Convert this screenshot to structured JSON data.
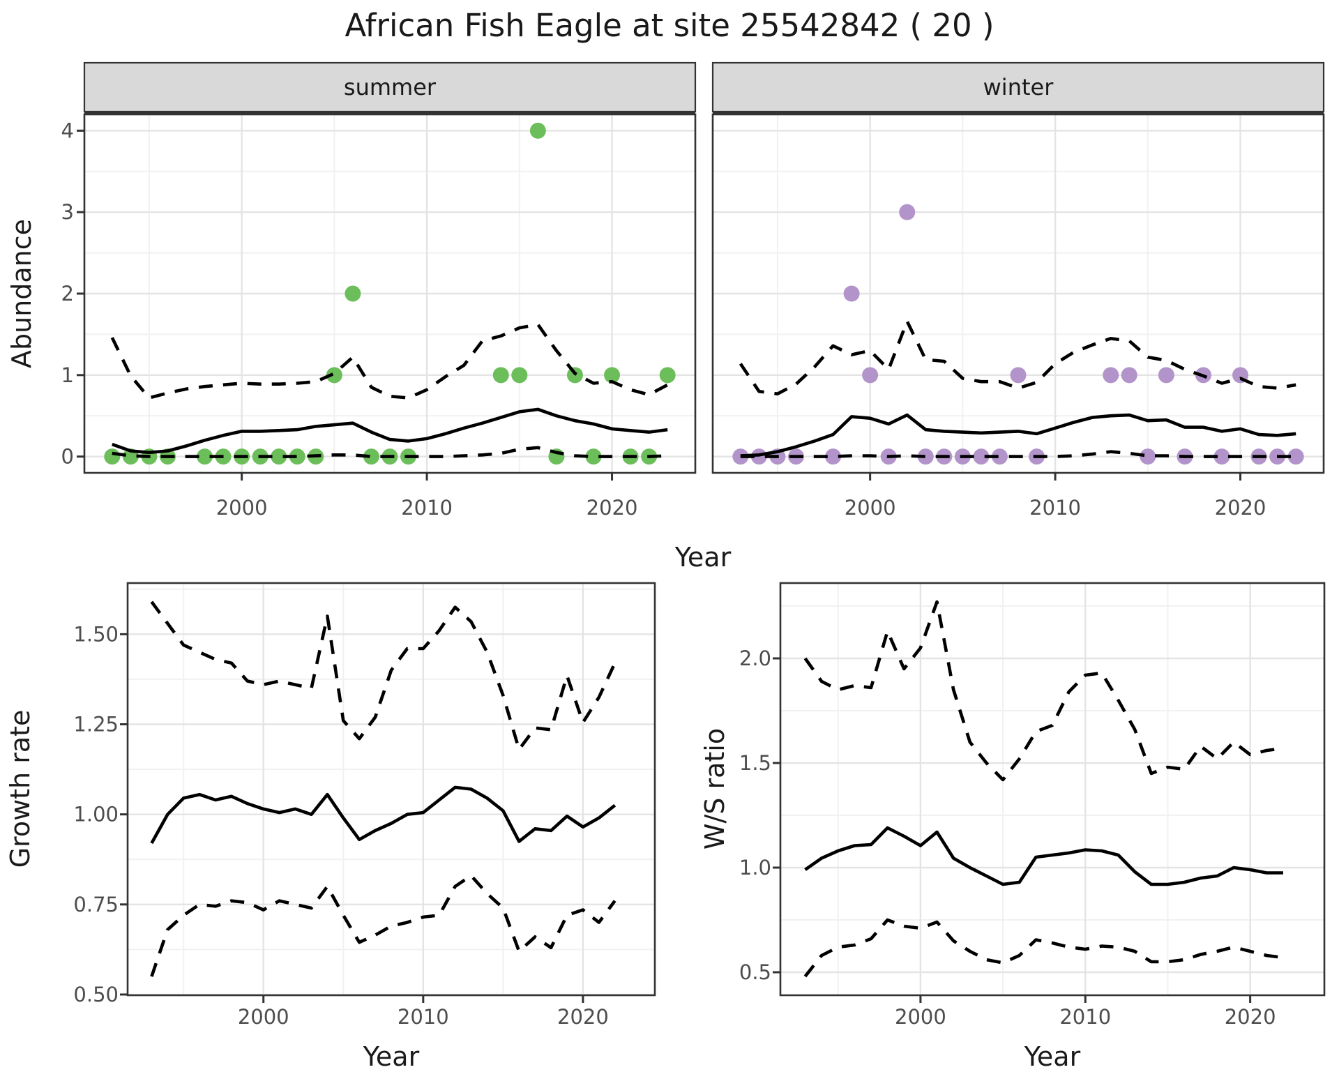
{
  "title": "African Fish Eagle at site 25542842 ( 20 )",
  "colors": {
    "summer_point": "#6CBE5A",
    "winter_point": "#B294CB",
    "line": "#000000",
    "grid_major": "#E4E4E4",
    "grid_minor": "#F1F1F1",
    "panel_border": "#333333",
    "tick": "#333333",
    "tick_label": "#4D4D4D",
    "axis_title": "#1A1A1A",
    "strip_bg": "#D9D9D9",
    "strip_text": "#1A1A1A"
  },
  "chart_data": [
    {
      "id": "abundance-summer",
      "type": "scatter",
      "facet_label": "summer",
      "xlabel": "Year",
      "ylabel": "Abundance",
      "xlim": [
        1991.5,
        2024.5
      ],
      "ylim": [
        -0.2,
        4.2
      ],
      "xticks": [
        2000,
        2010,
        2020
      ],
      "xtick_labels": [
        "2000",
        "2010",
        "2020"
      ],
      "xminor": [
        1995,
        2005,
        2015
      ],
      "yticks": [
        0,
        1,
        2,
        3,
        4
      ],
      "ytick_labels": [
        "0",
        "1",
        "2",
        "3",
        "4"
      ],
      "yminor": [
        0.5,
        1.5,
        2.5,
        3.5
      ],
      "years": [
        1993,
        1994,
        1995,
        1996,
        1997,
        1998,
        1999,
        2000,
        2001,
        2002,
        2003,
        2004,
        2005,
        2006,
        2007,
        2008,
        2009,
        2010,
        2011,
        2012,
        2013,
        2014,
        2015,
        2016,
        2017,
        2018,
        2019,
        2020,
        2021,
        2022,
        2023
      ],
      "series": [
        {
          "name": "mean",
          "style": "solid",
          "values": [
            0.15,
            0.07,
            0.05,
            0.07,
            0.13,
            0.2,
            0.26,
            0.31,
            0.31,
            0.32,
            0.33,
            0.37,
            0.39,
            0.41,
            0.3,
            0.21,
            0.19,
            0.22,
            0.28,
            0.35,
            0.41,
            0.48,
            0.55,
            0.58,
            0.5,
            0.44,
            0.4,
            0.34,
            0.32,
            0.3,
            0.33
          ]
        },
        {
          "name": "upper95",
          "style": "dashed",
          "values": [
            1.46,
            0.99,
            0.72,
            0.78,
            0.83,
            0.86,
            0.88,
            0.9,
            0.89,
            0.89,
            0.9,
            0.92,
            1.02,
            1.22,
            0.85,
            0.74,
            0.72,
            0.82,
            0.98,
            1.12,
            1.42,
            1.48,
            1.58,
            1.62,
            1.3,
            1.02,
            0.9,
            0.92,
            0.82,
            0.76,
            0.88
          ]
        },
        {
          "name": "lower95",
          "style": "dashed",
          "values": [
            0.04,
            0.01,
            0,
            0,
            0,
            0,
            0,
            0,
            0,
            0,
            0,
            0.01,
            0.02,
            0.02,
            0,
            0,
            0,
            0,
            0,
            0.01,
            0.02,
            0.04,
            0.09,
            0.11,
            0.05,
            0.01,
            0,
            0,
            0,
            0,
            0.01
          ]
        }
      ],
      "points": {
        "x": [
          1993,
          1994,
          1995,
          1996,
          1998,
          1999,
          2000,
          2001,
          2002,
          2003,
          2004,
          2005,
          2006,
          2007,
          2008,
          2009,
          2014,
          2015,
          2016,
          2017,
          2018,
          2019,
          2020,
          2021,
          2022,
          2023
        ],
        "y": [
          0,
          0,
          0,
          0,
          0,
          0,
          0,
          0,
          0,
          0,
          0,
          1,
          2,
          0,
          0,
          0,
          1,
          1,
          4,
          0,
          1,
          0,
          1,
          0,
          0,
          1
        ],
        "color_key": "summer_point"
      }
    },
    {
      "id": "abundance-winter",
      "type": "scatter",
      "facet_label": "winter",
      "xlabel": "Year",
      "ylabel": "",
      "xlim": [
        1991.5,
        2024.5
      ],
      "ylim": [
        -0.2,
        4.2
      ],
      "xticks": [
        2000,
        2010,
        2020
      ],
      "xtick_labels": [
        "2000",
        "2010",
        "2020"
      ],
      "xminor": [
        1995,
        2005,
        2015
      ],
      "yticks": [
        0,
        1,
        2,
        3,
        4
      ],
      "ytick_labels": [
        "0",
        "1",
        "2",
        "3",
        "4"
      ],
      "yminor": [
        0.5,
        1.5,
        2.5,
        3.5
      ],
      "years": [
        1993,
        1994,
        1995,
        1996,
        1997,
        1998,
        1999,
        2000,
        2001,
        2002,
        2003,
        2004,
        2005,
        2006,
        2007,
        2008,
        2009,
        2010,
        2011,
        2012,
        2013,
        2014,
        2015,
        2016,
        2017,
        2018,
        2019,
        2020,
        2021,
        2022,
        2023
      ],
      "series": [
        {
          "name": "mean",
          "style": "solid",
          "values": [
            0.01,
            0.02,
            0.06,
            0.12,
            0.19,
            0.27,
            0.49,
            0.47,
            0.4,
            0.51,
            0.33,
            0.31,
            0.3,
            0.29,
            0.3,
            0.31,
            0.28,
            0.35,
            0.42,
            0.48,
            0.5,
            0.51,
            0.44,
            0.45,
            0.36,
            0.36,
            0.31,
            0.34,
            0.27,
            0.26,
            0.28
          ]
        },
        {
          "name": "upper95",
          "style": "dashed",
          "values": [
            1.14,
            0.8,
            0.77,
            0.89,
            1.1,
            1.36,
            1.25,
            1.3,
            1.07,
            1.66,
            1.19,
            1.17,
            0.96,
            0.92,
            0.92,
            0.84,
            0.91,
            1.14,
            1.28,
            1.37,
            1.45,
            1.42,
            1.22,
            1.18,
            1.07,
            0.99,
            0.9,
            0.96,
            0.86,
            0.84,
            0.88
          ]
        },
        {
          "name": "lower95",
          "style": "dashed",
          "values": [
            0,
            0,
            0,
            0,
            0,
            0,
            0.01,
            0.01,
            0,
            0.01,
            0,
            0,
            0,
            0,
            0,
            0,
            0,
            0,
            0.01,
            0.03,
            0.06,
            0.04,
            0.01,
            0.01,
            0,
            0,
            0,
            0,
            0,
            0,
            0
          ]
        }
      ],
      "points": {
        "x": [
          1993,
          1994,
          1995,
          1996,
          1998,
          1999,
          2000,
          2001,
          2002,
          2003,
          2004,
          2005,
          2006,
          2007,
          2008,
          2009,
          2013,
          2014,
          2015,
          2016,
          2017,
          2018,
          2019,
          2020,
          2021,
          2022,
          2023
        ],
        "y": [
          0,
          0,
          0,
          0,
          0,
          2,
          1,
          0,
          3,
          0,
          0,
          0,
          0,
          0,
          1,
          0,
          1,
          1,
          0,
          1,
          0,
          1,
          0,
          1,
          0,
          0,
          0
        ],
        "color_key": "winter_point"
      }
    },
    {
      "id": "growth-rate",
      "type": "line",
      "facet_label": "",
      "xlabel": "Year",
      "ylabel": "Growth rate",
      "xlim": [
        1991.5,
        2024.5
      ],
      "ylim": [
        0.498,
        1.642
      ],
      "xticks": [
        2000,
        2010,
        2020
      ],
      "xtick_labels": [
        "2000",
        "2010",
        "2020"
      ],
      "xminor": [
        1995,
        2005,
        2015
      ],
      "yticks": [
        0.5,
        0.75,
        1.0,
        1.25,
        1.5
      ],
      "ytick_labels": [
        "0.50",
        "0.75",
        "1.00",
        "1.25",
        "1.50"
      ],
      "yminor": [
        0.625,
        0.875,
        1.125,
        1.375,
        1.625
      ],
      "years": [
        1993,
        1994,
        1995,
        1996,
        1997,
        1998,
        1999,
        2000,
        2001,
        2002,
        2003,
        2004,
        2005,
        2006,
        2007,
        2008,
        2009,
        2010,
        2011,
        2012,
        2013,
        2014,
        2015,
        2016,
        2017,
        2018,
        2019,
        2020,
        2021,
        2022
      ],
      "series": [
        {
          "name": "mean",
          "style": "solid",
          "values": [
            0.92,
            1.0,
            1.045,
            1.055,
            1.04,
            1.05,
            1.03,
            1.015,
            1.005,
            1.015,
            1.0,
            1.055,
            0.99,
            0.93,
            0.955,
            0.975,
            1.0,
            1.005,
            1.04,
            1.075,
            1.07,
            1.045,
            1.01,
            0.925,
            0.96,
            0.955,
            0.995,
            0.965,
            0.99,
            1.025
          ]
        },
        {
          "name": "upper95",
          "style": "dashed",
          "values": [
            1.59,
            1.53,
            1.47,
            1.45,
            1.43,
            1.42,
            1.37,
            1.36,
            1.37,
            1.36,
            1.35,
            1.55,
            1.26,
            1.21,
            1.27,
            1.4,
            1.46,
            1.46,
            1.51,
            1.575,
            1.535,
            1.45,
            1.33,
            1.18,
            1.24,
            1.235,
            1.385,
            1.255,
            1.325,
            1.42
          ]
        },
        {
          "name": "lower95",
          "style": "dashed",
          "values": [
            0.55,
            0.68,
            0.72,
            0.75,
            0.745,
            0.76,
            0.755,
            0.735,
            0.76,
            0.75,
            0.74,
            0.8,
            0.72,
            0.645,
            0.665,
            0.69,
            0.7,
            0.715,
            0.72,
            0.8,
            0.83,
            0.78,
            0.74,
            0.62,
            0.66,
            0.63,
            0.72,
            0.735,
            0.7,
            0.76
          ]
        }
      ],
      "points": null
    },
    {
      "id": "ws-ratio",
      "type": "line",
      "facet_label": "",
      "xlabel": "Year",
      "ylabel": "W/S ratio",
      "xlim": [
        1991.5,
        2024.5
      ],
      "ylim": [
        0.39,
        2.36
      ],
      "xticks": [
        2000,
        2010,
        2020
      ],
      "xtick_labels": [
        "2000",
        "2010",
        "2020"
      ],
      "xminor": [
        1995,
        2005,
        2015
      ],
      "yticks": [
        0.5,
        1.0,
        1.5,
        2.0
      ],
      "ytick_labels": [
        "0.5",
        "1.0",
        "1.5",
        "2.0"
      ],
      "yminor": [
        0.75,
        1.25,
        1.75,
        2.25
      ],
      "years": [
        1993,
        1994,
        1995,
        1996,
        1997,
        1998,
        1999,
        2000,
        2001,
        2002,
        2003,
        2004,
        2005,
        2006,
        2007,
        2008,
        2009,
        2010,
        2011,
        2012,
        2013,
        2014,
        2015,
        2016,
        2017,
        2018,
        2019,
        2020,
        2021,
        2022
      ],
      "series": [
        {
          "name": "mean",
          "style": "solid",
          "values": [
            0.99,
            1.045,
            1.08,
            1.105,
            1.11,
            1.19,
            1.15,
            1.105,
            1.17,
            1.045,
            1.0,
            0.96,
            0.92,
            0.93,
            1.05,
            1.06,
            1.07,
            1.085,
            1.08,
            1.06,
            0.98,
            0.92,
            0.92,
            0.93,
            0.95,
            0.96,
            1.0,
            0.99,
            0.975,
            0.975
          ]
        },
        {
          "name": "upper95",
          "style": "dashed",
          "values": [
            2.0,
            1.89,
            1.85,
            1.87,
            1.86,
            2.13,
            1.95,
            2.05,
            2.27,
            1.85,
            1.6,
            1.5,
            1.42,
            1.52,
            1.65,
            1.68,
            1.84,
            1.92,
            1.93,
            1.8,
            1.66,
            1.45,
            1.48,
            1.47,
            1.58,
            1.52,
            1.6,
            1.54,
            1.56,
            1.57
          ]
        },
        {
          "name": "lower95",
          "style": "dashed",
          "values": [
            0.48,
            0.58,
            0.62,
            0.63,
            0.66,
            0.75,
            0.72,
            0.71,
            0.74,
            0.65,
            0.6,
            0.56,
            0.545,
            0.58,
            0.655,
            0.64,
            0.62,
            0.61,
            0.625,
            0.62,
            0.6,
            0.55,
            0.55,
            0.56,
            0.585,
            0.6,
            0.62,
            0.6,
            0.58,
            0.57
          ]
        }
      ],
      "points": null
    }
  ]
}
